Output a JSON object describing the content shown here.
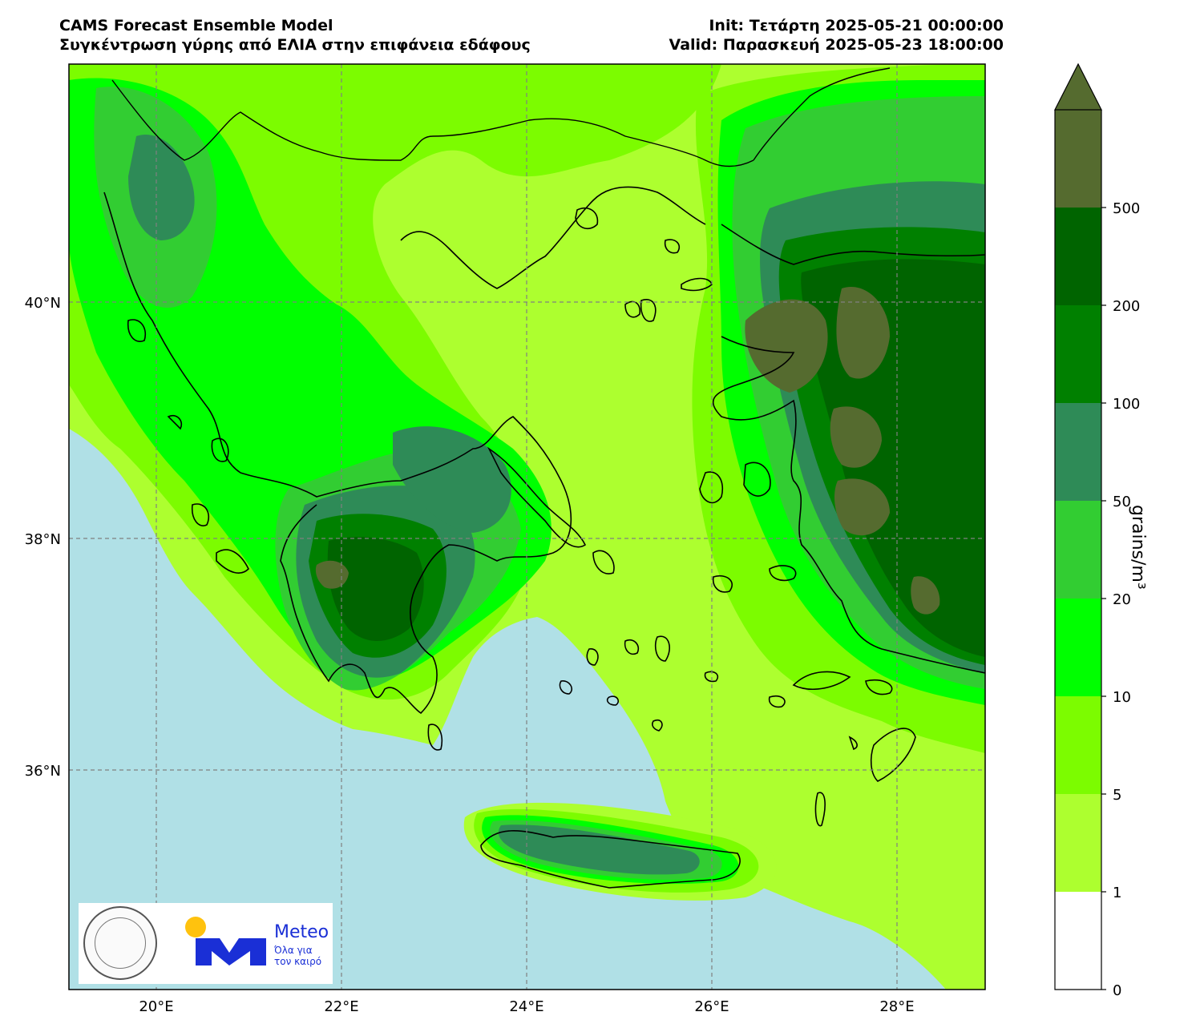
{
  "header": {
    "title_line1": "CAMS Forecast Ensemble Model",
    "title_line2": "Συγκέντρωση γύρης από ΕΛΙΑ στην επιφάνεια εδάφους",
    "init_line": "Init: Τετάρτη 2025-05-21 00:00:00",
    "valid_line": "Valid: Παρασκευή 2025-05-23 18:00:00"
  },
  "map": {
    "lon_ticks": [
      "20°E",
      "22°E",
      "24°E",
      "26°E",
      "28°E"
    ],
    "lat_ticks": [
      "40°N",
      "38°N",
      "36°N"
    ],
    "lon_range": [
      19.05,
      28.95
    ],
    "lat_range": [
      34.1,
      41.85
    ],
    "gridlines": true,
    "sea_color": "#b0e0e6"
  },
  "colorbar": {
    "unit_label": "grains/m³",
    "levels": [
      "0",
      "1",
      "5",
      "10",
      "20",
      "50",
      "100",
      "200",
      "500"
    ],
    "colors": [
      "#ffffff",
      "#adff2f",
      "#7cfc00",
      "#00ff00",
      "#32cd32",
      "#2e8b57",
      "#008000",
      "#006400",
      "#556b2f"
    ],
    "extend": "max"
  },
  "logos": {
    "left": "national-observatory-of-athens-seal",
    "right": "meteo-logo",
    "meteo_word": "Meteo",
    "meteo_slogan": "Όλα για τον καιρό"
  }
}
